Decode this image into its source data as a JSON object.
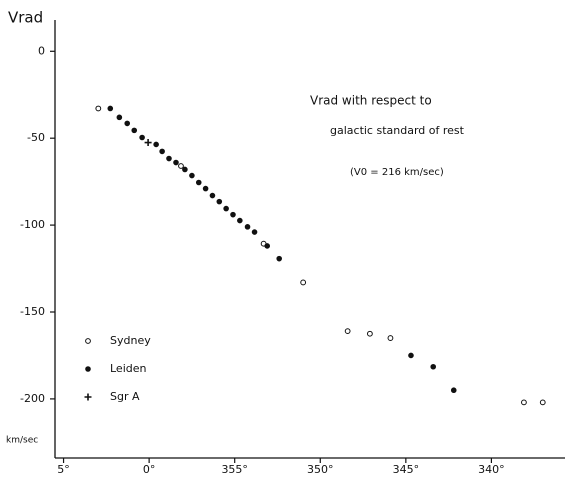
{
  "chart_data": {
    "type": "scatter",
    "y_label": "Vrad",
    "y_unit": "km/sec",
    "annotation": [
      "Vrad with respect to",
      "galactic standard of rest",
      "(V0 = 216 km/sec)"
    ],
    "xlim": [
      5.5,
      -24.3
    ],
    "ylim": [
      -234,
      18
    ],
    "xticks": [
      {
        "value": 5,
        "label": "5°"
      },
      {
        "value": 0,
        "label": "0°"
      },
      {
        "value": -5,
        "label": "355°"
      },
      {
        "value": -10,
        "label": "350°"
      },
      {
        "value": -15,
        "label": "345°"
      },
      {
        "value": -20,
        "label": "340°"
      }
    ],
    "yticks": [
      0,
      -50,
      -100,
      -150,
      -200
    ],
    "legend": "lower left",
    "series": [
      {
        "name": "Sydney",
        "color": "#111111",
        "marker": "open",
        "x": [
          2.97,
          -1.86,
          -6.69,
          -9.0,
          -11.6,
          -12.9,
          -14.1,
          -21.9,
          -23.0
        ],
        "values": [
          -32.9,
          -66,
          -110.7,
          -133,
          -161,
          -162.5,
          -165,
          -202,
          -202
        ]
      },
      {
        "name": "Leiden",
        "color": "#111111",
        "marker": "filled",
        "x": [
          2.27,
          1.74,
          1.28,
          0.87,
          0.41,
          -0.41,
          -0.76,
          -1.16,
          -1.57,
          -2.09,
          -2.5,
          -2.9,
          -3.3,
          -3.7,
          -4.1,
          -4.5,
          -4.9,
          -5.3,
          -5.75,
          -6.16,
          -6.9,
          -7.6,
          -15.3,
          -16.6,
          -17.8
        ],
        "values": [
          -32.9,
          -38,
          -41.5,
          -45.5,
          -49.6,
          -53.6,
          -57.6,
          -61.7,
          -64,
          -68,
          -71.5,
          -75.5,
          -79,
          -83,
          -86.5,
          -90.5,
          -94,
          -97.4,
          -101,
          -104,
          -112,
          -119.3,
          -175,
          -181.5,
          -195
        ]
      },
      {
        "name": "Sgr A",
        "color": "#111111",
        "marker": "plus",
        "x": [
          0.06
        ],
        "values": [
          -52.5
        ]
      }
    ]
  }
}
